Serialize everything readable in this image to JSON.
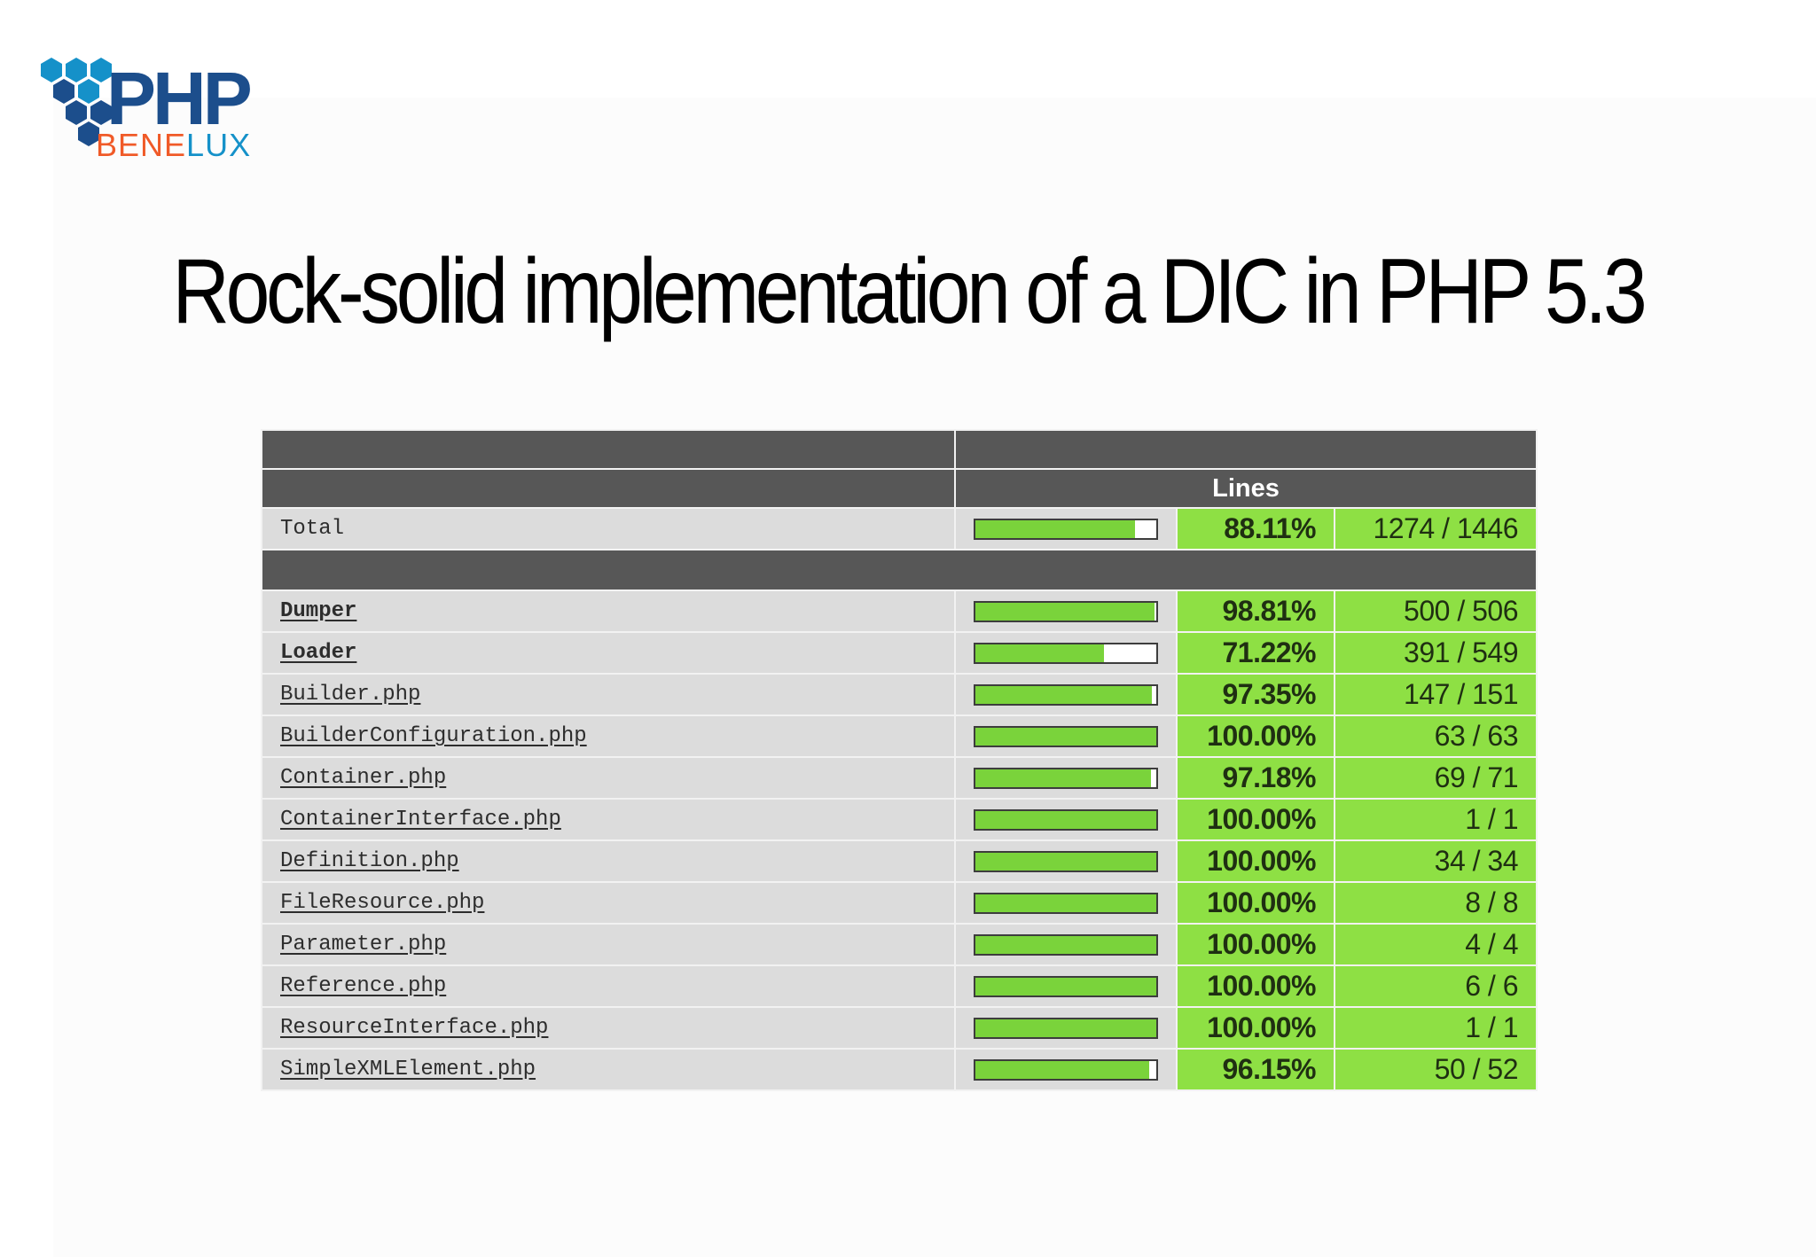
{
  "slide": {
    "title": "Rock-solid implementation of a DIC in PHP 5.3"
  },
  "logo": {
    "text_php": "PHP",
    "text_benelux": "BENELUX"
  },
  "colors": {
    "logo_blue": "#1591c9",
    "logo_navy": "#1c4e8c",
    "logo_orange": "#f05a28",
    "coverage_green": "#8ee044",
    "bar_green": "#7ad33b",
    "header_gray": "#575757",
    "row_gray": "#dcdcdc"
  },
  "table": {
    "header": {
      "lines_label": "Lines"
    },
    "total": {
      "name": "Total",
      "coverage": 0.8811,
      "percent": "88.11%",
      "lines": "1274 / 1446"
    },
    "rows": [
      {
        "name": "Dumper",
        "coverage": 0.9881,
        "percent": "98.81%",
        "lines": "500 / 506"
      },
      {
        "name": "Loader",
        "coverage": 0.7122,
        "percent": "71.22%",
        "lines": "391 / 549"
      },
      {
        "name": "Builder.php",
        "coverage": 0.9735,
        "percent": "97.35%",
        "lines": "147 / 151"
      },
      {
        "name": "BuilderConfiguration.php",
        "coverage": 1.0,
        "percent": "100.00%",
        "lines": "63 / 63"
      },
      {
        "name": "Container.php",
        "coverage": 0.9718,
        "percent": "97.18%",
        "lines": "69 / 71"
      },
      {
        "name": "ContainerInterface.php",
        "coverage": 1.0,
        "percent": "100.00%",
        "lines": "1 / 1"
      },
      {
        "name": "Definition.php",
        "coverage": 1.0,
        "percent": "100.00%",
        "lines": "34 / 34"
      },
      {
        "name": "FileResource.php",
        "coverage": 1.0,
        "percent": "100.00%",
        "lines": "8 / 8"
      },
      {
        "name": "Parameter.php",
        "coverage": 1.0,
        "percent": "100.00%",
        "lines": "4 / 4"
      },
      {
        "name": "Reference.php",
        "coverage": 1.0,
        "percent": "100.00%",
        "lines": "6 / 6"
      },
      {
        "name": "ResourceInterface.php",
        "coverage": 1.0,
        "percent": "100.00%",
        "lines": "1 / 1"
      },
      {
        "name": "SimpleXMLElement.php",
        "coverage": 0.9615,
        "percent": "96.15%",
        "lines": "50 / 52"
      }
    ]
  }
}
